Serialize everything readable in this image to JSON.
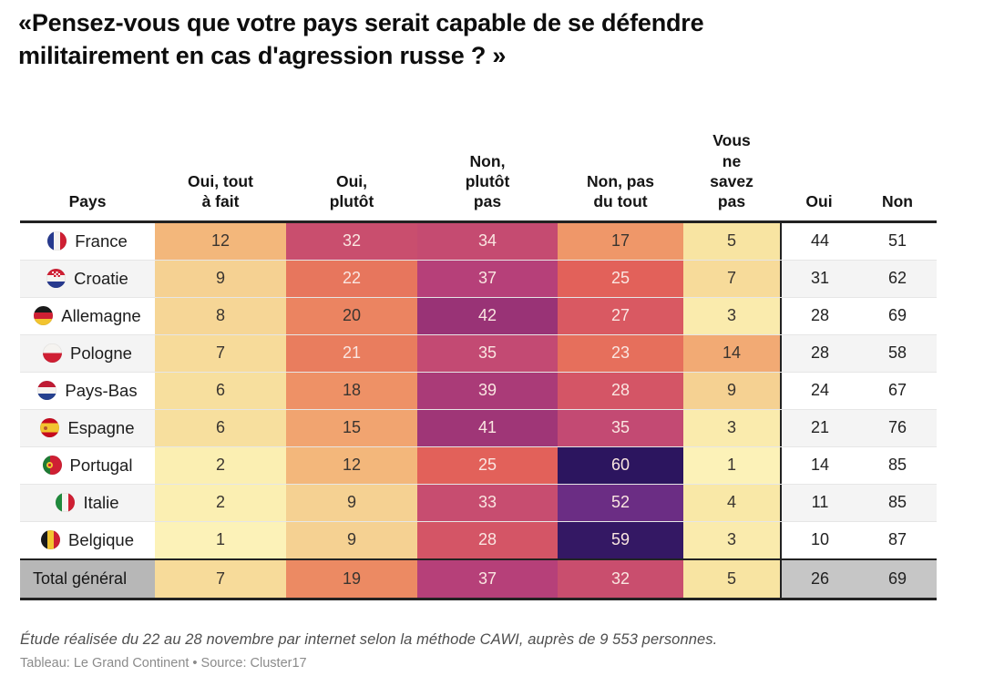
{
  "title": "«Pensez-vous que votre pays serait capable de se défendre militairement en cas d'agression russe ? »",
  "table": {
    "columns": [
      {
        "label": "Pays"
      },
      {
        "label": "Oui, tout à fait"
      },
      {
        "label": "Oui, plutôt"
      },
      {
        "label": "Non, plutôt pas"
      },
      {
        "label": "Non, pas du tout"
      },
      {
        "label": "Vous ne savez pas"
      },
      {
        "label": "Oui"
      },
      {
        "label": "Non"
      }
    ]
  },
  "chart_data": {
    "type": "heatmap",
    "title": "«Pensez-vous que votre pays serait capable de se défendre militairement en cas d'agression russe ? »",
    "columns": [
      "Oui, tout à fait",
      "Oui, plutôt",
      "Non, plutôt pas",
      "Non, pas du tout",
      "Vous ne savez pas",
      "Oui",
      "Non"
    ],
    "rows": [
      {
        "country": "France",
        "flag": "fr",
        "values": [
          12,
          32,
          34,
          17,
          5
        ],
        "oui": 44,
        "non": 51
      },
      {
        "country": "Croatie",
        "flag": "hr",
        "values": [
          9,
          22,
          37,
          25,
          7
        ],
        "oui": 31,
        "non": 62
      },
      {
        "country": "Allemagne",
        "flag": "de",
        "values": [
          8,
          20,
          42,
          27,
          3
        ],
        "oui": 28,
        "non": 69
      },
      {
        "country": "Pologne",
        "flag": "pl",
        "values": [
          7,
          21,
          35,
          23,
          14
        ],
        "oui": 28,
        "non": 58
      },
      {
        "country": "Pays-Bas",
        "flag": "nl",
        "values": [
          6,
          18,
          39,
          28,
          9
        ],
        "oui": 24,
        "non": 67
      },
      {
        "country": "Espagne",
        "flag": "es",
        "values": [
          6,
          15,
          41,
          35,
          3
        ],
        "oui": 21,
        "non": 76
      },
      {
        "country": "Portugal",
        "flag": "pt",
        "values": [
          2,
          12,
          25,
          60,
          1
        ],
        "oui": 14,
        "non": 85
      },
      {
        "country": "Italie",
        "flag": "it",
        "values": [
          2,
          9,
          33,
          52,
          4
        ],
        "oui": 11,
        "non": 85
      },
      {
        "country": "Belgique",
        "flag": "be",
        "values": [
          1,
          9,
          28,
          59,
          3
        ],
        "oui": 10,
        "non": 87
      }
    ],
    "total": {
      "label": "Total général",
      "values": [
        7,
        19,
        37,
        32,
        5
      ],
      "oui": 26,
      "non": 69
    },
    "color_scale": {
      "stops": [
        [
          0,
          "#fdf6bd"
        ],
        [
          5,
          "#f8e4a2"
        ],
        [
          9,
          "#f5d192"
        ],
        [
          12,
          "#f3b77b"
        ],
        [
          15,
          "#f1a470"
        ],
        [
          18,
          "#ee9166"
        ],
        [
          21,
          "#e97d5e"
        ],
        [
          25,
          "#e2615a"
        ],
        [
          28,
          "#d45566"
        ],
        [
          32,
          "#c94e6e"
        ],
        [
          35,
          "#c34a73"
        ],
        [
          37,
          "#b64079"
        ],
        [
          42,
          "#993376"
        ],
        [
          52,
          "#6b2d84"
        ],
        [
          60,
          "#2c155f"
        ],
        [
          100,
          "#150b38"
        ]
      ],
      "light_text_threshold": 21,
      "light_text": "#fae6e1",
      "dark_text": "#3a3530"
    },
    "colors": {
      "border": "#222222",
      "row_stripe": "#f4f4f4",
      "total_label_bg": "#b7b7b7",
      "total_summary_bg": "#c6c6c6"
    }
  },
  "footer": {
    "note": "Étude réalisée du 22 au 28 novembre par internet selon la méthode CAWI, auprès de 9 553 personnes.",
    "credit": "Tableau: Le Grand Continent • Source: Cluster17"
  }
}
